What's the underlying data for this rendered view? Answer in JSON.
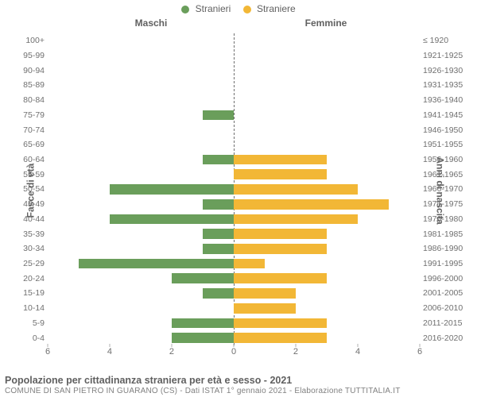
{
  "legend": {
    "male": {
      "label": "Stranieri",
      "color": "#6a9e5b"
    },
    "female": {
      "label": "Straniere",
      "color": "#f2b736"
    }
  },
  "panel_titles": {
    "left": "Maschi",
    "right": "Femmine"
  },
  "axis_labels": {
    "left": "Fasce di età",
    "right": "Anni di nascita"
  },
  "x_axis": {
    "max": 6,
    "ticks": [
      6,
      4,
      2,
      0,
      2,
      4,
      6
    ]
  },
  "chart": {
    "type": "population-pyramid",
    "background_color": "#ffffff",
    "grid_color": "#e0e0e0",
    "tick_color": "#b0b0b0",
    "label_fontsize": 12,
    "tick_fontsize": 11,
    "category_fontsize": 10.5,
    "bar_height_ratio": 0.68,
    "divider_style": "dashed"
  },
  "categories": [
    {
      "age": "100+",
      "birth": "≤ 1920",
      "m": 0,
      "f": 0
    },
    {
      "age": "95-99",
      "birth": "1921-1925",
      "m": 0,
      "f": 0
    },
    {
      "age": "90-94",
      "birth": "1926-1930",
      "m": 0,
      "f": 0
    },
    {
      "age": "85-89",
      "birth": "1931-1935",
      "m": 0,
      "f": 0
    },
    {
      "age": "80-84",
      "birth": "1936-1940",
      "m": 0,
      "f": 0
    },
    {
      "age": "75-79",
      "birth": "1941-1945",
      "m": 1,
      "f": 0
    },
    {
      "age": "70-74",
      "birth": "1946-1950",
      "m": 0,
      "f": 0
    },
    {
      "age": "65-69",
      "birth": "1951-1955",
      "m": 0,
      "f": 0
    },
    {
      "age": "60-64",
      "birth": "1956-1960",
      "m": 1,
      "f": 3
    },
    {
      "age": "55-59",
      "birth": "1961-1965",
      "m": 0,
      "f": 3
    },
    {
      "age": "50-54",
      "birth": "1966-1970",
      "m": 4,
      "f": 4
    },
    {
      "age": "45-49",
      "birth": "1971-1975",
      "m": 1,
      "f": 5
    },
    {
      "age": "40-44",
      "birth": "1976-1980",
      "m": 4,
      "f": 4
    },
    {
      "age": "35-39",
      "birth": "1981-1985",
      "m": 1,
      "f": 3
    },
    {
      "age": "30-34",
      "birth": "1986-1990",
      "m": 1,
      "f": 3
    },
    {
      "age": "25-29",
      "birth": "1991-1995",
      "m": 5,
      "f": 1
    },
    {
      "age": "20-24",
      "birth": "1996-2000",
      "m": 2,
      "f": 3
    },
    {
      "age": "15-19",
      "birth": "2001-2005",
      "m": 1,
      "f": 2
    },
    {
      "age": "10-14",
      "birth": "2006-2010",
      "m": 0,
      "f": 2
    },
    {
      "age": "5-9",
      "birth": "2011-2015",
      "m": 2,
      "f": 3
    },
    {
      "age": "0-4",
      "birth": "2016-2020",
      "m": 2,
      "f": 3
    }
  ],
  "footer": {
    "title": "Popolazione per cittadinanza straniera per età e sesso - 2021",
    "subtitle": "COMUNE DI SAN PIETRO IN GUARANO (CS) - Dati ISTAT 1° gennaio 2021 - Elaborazione TUTTITALIA.IT"
  }
}
